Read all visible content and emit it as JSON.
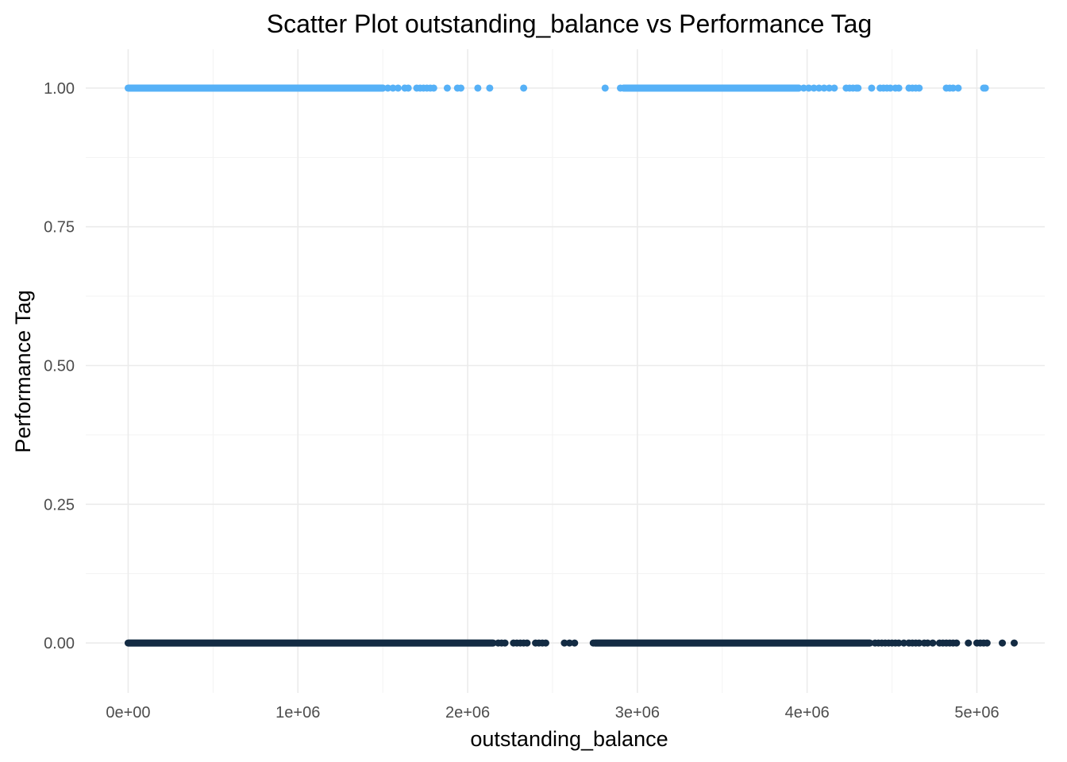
{
  "chart_data": {
    "type": "scatter",
    "title": "Scatter Plot outstanding_balance vs Performance Tag",
    "xlabel": "outstanding_balance",
    "ylabel": "Performance Tag",
    "xlim": [
      -250000,
      5400000
    ],
    "ylim": [
      -0.09,
      1.07
    ],
    "x_ticks": [
      0,
      1000000,
      2000000,
      3000000,
      4000000,
      5000000
    ],
    "x_tick_labels": [
      "0e+00",
      "1e+06",
      "2e+06",
      "3e+06",
      "4e+06",
      "5e+06"
    ],
    "y_ticks": [
      0,
      0.25,
      0.5,
      0.75,
      1
    ],
    "y_tick_labels": [
      "0.00",
      "0.25",
      "0.50",
      "0.75",
      "1.00"
    ],
    "grid": true,
    "legend": "none",
    "series": [
      {
        "color": "#56B1F7",
        "y": 1,
        "dense_ranges": [
          [
            0,
            1500000
          ],
          [
            2920000,
            3950000
          ]
        ],
        "x": [
          1500000,
          1530000,
          1560000,
          1590000,
          1630000,
          1650000,
          1700000,
          1720000,
          1740000,
          1760000,
          1780000,
          1800000,
          1880000,
          1940000,
          1960000,
          2060000,
          2130000,
          2330000,
          2810000,
          2900000,
          2920000,
          3950000,
          3980000,
          4010000,
          4040000,
          4070000,
          4100000,
          4130000,
          4160000,
          4230000,
          4250000,
          4270000,
          4290000,
          4300000,
          4380000,
          4430000,
          4450000,
          4470000,
          4490000,
          4520000,
          4540000,
          4600000,
          4620000,
          4640000,
          4660000,
          4820000,
          4840000,
          4860000,
          4890000,
          5040000,
          5050000
        ]
      },
      {
        "color": "#132B43",
        "y": 0,
        "dense_ranges": [
          [
            0,
            2150000
          ],
          [
            2750000,
            4370000
          ]
        ],
        "x": [
          2180000,
          2200000,
          2220000,
          2270000,
          2290000,
          2310000,
          2330000,
          2350000,
          2400000,
          2420000,
          2440000,
          2460000,
          2570000,
          2600000,
          2630000,
          2740000,
          4400000,
          4420000,
          4440000,
          4460000,
          4480000,
          4500000,
          4520000,
          4540000,
          4570000,
          4600000,
          4620000,
          4640000,
          4660000,
          4690000,
          4710000,
          4740000,
          4780000,
          4800000,
          4820000,
          4840000,
          4860000,
          4880000,
          4950000,
          5000000,
          5020000,
          5040000,
          5060000,
          5150000,
          5220000
        ]
      }
    ]
  }
}
